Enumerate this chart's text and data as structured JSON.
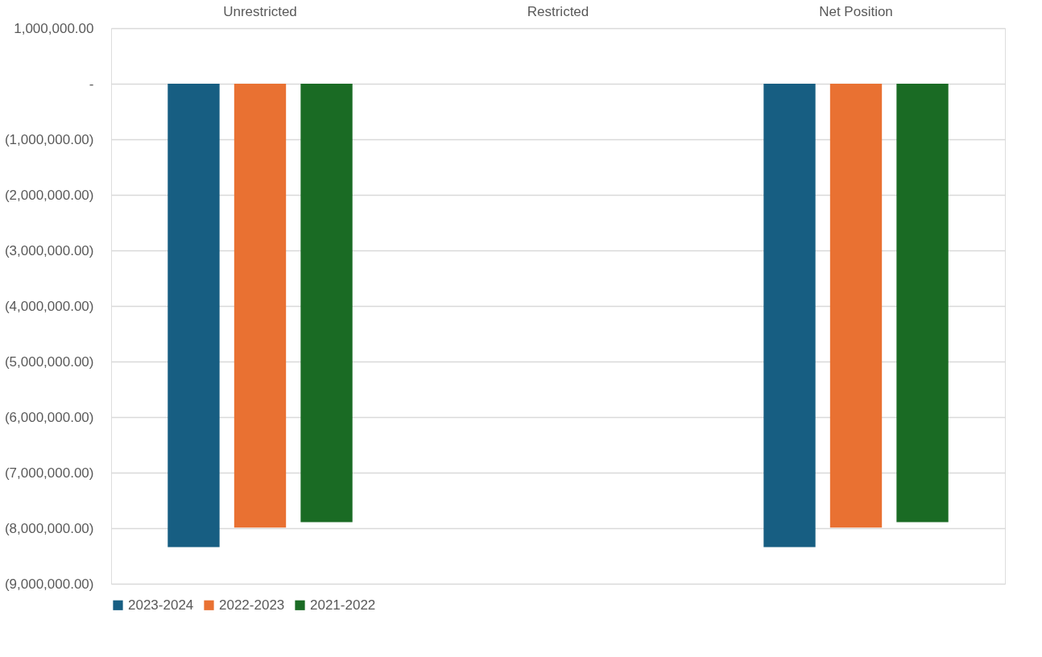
{
  "chart_data": {
    "type": "bar",
    "categories": [
      "Unrestricted",
      "Restricted",
      "Net Position"
    ],
    "series": [
      {
        "name": "2023-2024",
        "color": "#175e82",
        "values": [
          -8340000,
          0,
          -8340000
        ]
      },
      {
        "name": "2022-2023",
        "color": "#e97132",
        "values": [
          -7990000,
          0,
          -7990000
        ]
      },
      {
        "name": "2021-2022",
        "color": "#1a6b24",
        "values": [
          -7890000,
          0,
          -7890000
        ]
      }
    ],
    "ylim": [
      -9000000,
      1000000
    ],
    "yticks": [
      {
        "value": 1000000,
        "label": "1,000,000.00"
      },
      {
        "value": 0,
        "label": "-"
      },
      {
        "value": -1000000,
        "label": "(1,000,000.00)"
      },
      {
        "value": -2000000,
        "label": "(2,000,000.00)"
      },
      {
        "value": -3000000,
        "label": "(3,000,000.00)"
      },
      {
        "value": -4000000,
        "label": "(4,000,000.00)"
      },
      {
        "value": -5000000,
        "label": "(5,000,000.00)"
      },
      {
        "value": -6000000,
        "label": "(6,000,000.00)"
      },
      {
        "value": -7000000,
        "label": "(7,000,000.00)"
      },
      {
        "value": -8000000,
        "label": "(8,000,000.00)"
      },
      {
        "value": -9000000,
        "label": "(9,000,000.00)"
      }
    ],
    "grid": "y",
    "legend": "bottom"
  }
}
